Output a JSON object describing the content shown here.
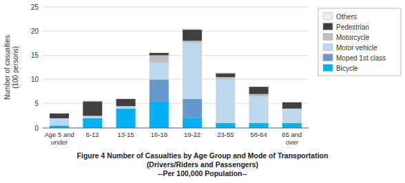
{
  "chart_data": {
    "type": "bar",
    "stacked": true,
    "title": "Figure 4  Number of Casualties by Age Group and Mode of Transportation",
    "subtitle": [
      "(Drivers/Riders and Passengers)",
      "--Per 100,000 Population--"
    ],
    "ylabel": "Number of casualties\n(100 persons)",
    "categories": [
      "Age 5 and under",
      "6-12",
      "13-15",
      "16-18",
      "19-22",
      "23-55",
      "56-64",
      "65 and over"
    ],
    "series": [
      {
        "name": "Bicycle",
        "color": "#00b0f0",
        "values": [
          0.5,
          2.0,
          4.0,
          5.5,
          2.0,
          1.0,
          1.0,
          1.0
        ]
      },
      {
        "name": "Moped 1st class",
        "color": "#6699cc",
        "values": [
          0.0,
          0.0,
          0.0,
          4.5,
          4.0,
          0.0,
          0.0,
          0.0
        ]
      },
      {
        "name": "Motor vehicle",
        "color": "#bdd7ee",
        "values": [
          1.5,
          0.5,
          0.5,
          3.5,
          11.5,
          9.0,
          5.5,
          3.0
        ]
      },
      {
        "name": "Motorcycle",
        "color": "#c0c0c0",
        "values": [
          0.0,
          0.0,
          0.0,
          1.5,
          0.5,
          0.5,
          0.5,
          0.0
        ]
      },
      {
        "name": "Pedestrian",
        "color": "#404040",
        "values": [
          1.0,
          3.0,
          1.5,
          0.5,
          2.3,
          0.8,
          1.5,
          1.3
        ]
      },
      {
        "name": "Others",
        "color": "#e8f4e8",
        "values": [
          0.0,
          0.3,
          0.0,
          0.0,
          0.3,
          0.2,
          0.0,
          0.0
        ]
      }
    ],
    "ylim": [
      0,
      25
    ],
    "yticks": [
      0,
      5,
      10,
      15,
      20,
      25
    ],
    "grid": true,
    "legend": "right"
  }
}
